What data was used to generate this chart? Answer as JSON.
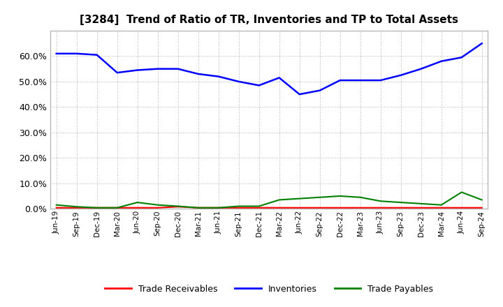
{
  "title": "[3284]  Trend of Ratio of TR, Inventories and TP to Total Assets",
  "x_labels": [
    "Jun-19",
    "Sep-19",
    "Dec-19",
    "Mar-20",
    "Jun-20",
    "Sep-20",
    "Dec-20",
    "Mar-21",
    "Jun-21",
    "Sep-21",
    "Dec-21",
    "Mar-22",
    "Jun-22",
    "Sep-22",
    "Dec-22",
    "Mar-23",
    "Jun-23",
    "Sep-23",
    "Dec-23",
    "Mar-24",
    "Jun-24",
    "Sep-24"
  ],
  "inventories": [
    61.0,
    61.0,
    60.5,
    53.5,
    54.5,
    55.0,
    55.0,
    53.0,
    52.0,
    50.0,
    48.5,
    51.5,
    45.0,
    46.5,
    50.5,
    50.5,
    50.5,
    52.5,
    55.0,
    58.0,
    59.5,
    65.0
  ],
  "trade_receivables": [
    0.4,
    0.4,
    0.4,
    0.4,
    0.4,
    0.4,
    0.8,
    0.4,
    0.4,
    0.4,
    0.4,
    0.4,
    0.4,
    0.4,
    0.4,
    0.4,
    0.4,
    0.4,
    0.4,
    0.4,
    0.4,
    0.4
  ],
  "trade_payables": [
    1.5,
    0.8,
    0.4,
    0.4,
    2.5,
    1.5,
    1.0,
    0.4,
    0.4,
    1.0,
    1.0,
    3.5,
    4.0,
    4.5,
    5.0,
    4.5,
    3.0,
    2.5,
    2.0,
    1.5,
    6.5,
    3.5
  ],
  "inventories_color": "#0000ff",
  "trade_receivables_color": "#ff0000",
  "trade_payables_color": "#008000",
  "ylim": [
    0,
    70
  ],
  "yticks": [
    0.0,
    10.0,
    20.0,
    30.0,
    40.0,
    50.0,
    60.0
  ],
  "background_color": "#ffffff",
  "grid_color": "#999999",
  "legend_labels": [
    "Trade Receivables",
    "Inventories",
    "Trade Payables"
  ]
}
